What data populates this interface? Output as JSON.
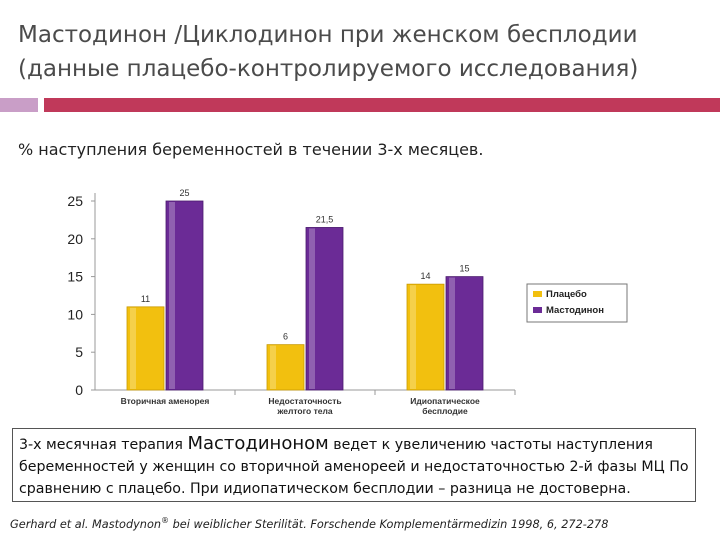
{
  "slide": {
    "title_line1": "Мастодинон /Циклодинон  при женском бесплодии",
    "title_line2": "(данные плацебо-контролируемого исследования)",
    "subtitle": "% наступления беременностей  в течении 3-х месяцев.",
    "body_part1": "3-х месячная терапия ",
    "body_highlight": "Мастодиноном",
    "body_part2": " ведет к увеличению частоты наступления беременностей у женщин со вторичной аменореей и недостаточностью 2-й фазы МЦ По сравнению с плацебо. При идиопатическом бесплодии – разница не достоверна.",
    "reference_pre": "Gerhard et al. Mastodynon",
    "reference_sup": "®",
    "reference_post": " bei weiblicher Sterilität. Forschende Komplementärmedizin 1998, 6, 272-278",
    "accent_colors": {
      "left": "#c99ec7",
      "right": "#c0395a"
    }
  },
  "chart_data": {
    "type": "bar",
    "categories": [
      [
        "Вторичная аменорея"
      ],
      [
        "Недостаточность",
        "желтого тела"
      ],
      [
        "Идиопатическое",
        "бесплодие"
      ]
    ],
    "series": [
      {
        "name": "Плацебо",
        "values": [
          11,
          6,
          14
        ],
        "labels": [
          "11",
          "6",
          "14"
        ],
        "color": "#f2c00f"
      },
      {
        "name": "Мастодинон",
        "values": [
          25,
          21.5,
          15
        ],
        "labels": [
          "25",
          "21,5",
          "15"
        ],
        "color": "#6b2b96"
      }
    ],
    "ylim": [
      0,
      25
    ],
    "yticks": [
      0,
      5,
      10,
      15,
      20,
      25
    ],
    "legend_position": "right",
    "grid": false
  }
}
